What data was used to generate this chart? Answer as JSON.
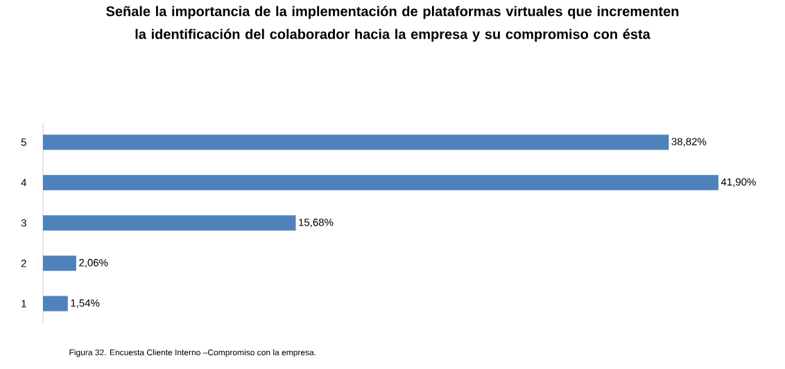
{
  "chart_data": {
    "type": "bar",
    "orientation": "horizontal",
    "title": "Señale la importancia de la implementación de plataformas virtuales que incrementen la identificación del colaborador hacia la empresa y su compromiso con ésta",
    "categories": [
      "5",
      "4",
      "3",
      "2",
      "1"
    ],
    "values": [
      38.82,
      41.9,
      15.68,
      2.06,
      1.54
    ],
    "value_labels": [
      "38,82%",
      "41,90%",
      "15,68%",
      "2,06%",
      "1,54%"
    ],
    "color": "#4f81bd",
    "annotations": [
      "Figura 32. Encuesta Cliente Interno –Compromiso con la empresa."
    ]
  }
}
